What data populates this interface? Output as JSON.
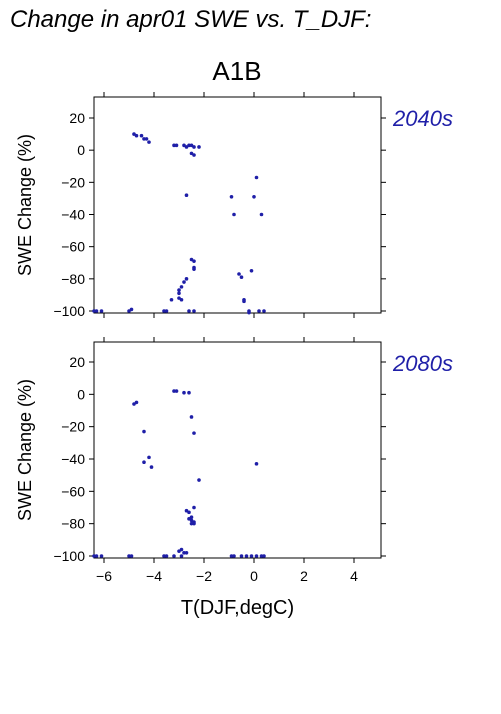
{
  "title": "Change in apr01 SWE vs. T_DJF:",
  "scenario": "A1B",
  "colors": {
    "points": "#1f1fa8",
    "period_label": "#1f1fa8",
    "axis": "#000000"
  },
  "chart_data": [
    {
      "type": "scatter",
      "period_label": "2040s",
      "ylabel": "SWE Change (%)",
      "xlabel": "",
      "xlim": [
        -6.5,
        5
      ],
      "ylim": [
        -100,
        30
      ],
      "x_ticks": [
        -6,
        -4,
        -2,
        0,
        2,
        4
      ],
      "x_tick_labels": [
        "",
        "",
        "",
        "",
        "",
        ""
      ],
      "y_ticks": [
        20,
        0,
        -20,
        -40,
        -60,
        -80,
        -100
      ],
      "y_tick_labels": [
        "20",
        "0",
        "−20",
        "−40",
        "−60",
        "−80",
        "−100"
      ],
      "grid": false,
      "points": [
        [
          -4.8,
          10
        ],
        [
          -4.7,
          9
        ],
        [
          -4.5,
          9
        ],
        [
          -4.4,
          7
        ],
        [
          -4.3,
          7
        ],
        [
          -4.2,
          5
        ],
        [
          -3.2,
          3
        ],
        [
          -3.1,
          3
        ],
        [
          -2.8,
          3
        ],
        [
          -2.7,
          2
        ],
        [
          -2.6,
          3
        ],
        [
          -2.5,
          3
        ],
        [
          -2.4,
          2
        ],
        [
          -2.2,
          2
        ],
        [
          -2.5,
          -2
        ],
        [
          -2.4,
          -3
        ],
        [
          -2.7,
          -28
        ],
        [
          -0.9,
          -29
        ],
        [
          -0.8,
          -40
        ],
        [
          0.1,
          -17
        ],
        [
          0.0,
          -29
        ],
        [
          0.3,
          -40
        ],
        [
          -2.5,
          -68
        ],
        [
          -2.4,
          -69
        ],
        [
          -2.4,
          -73
        ],
        [
          -2.4,
          -74
        ],
        [
          -2.7,
          -80
        ],
        [
          -2.8,
          -82
        ],
        [
          -2.9,
          -85
        ],
        [
          -3.0,
          -87
        ],
        [
          -3.0,
          -89
        ],
        [
          -3.0,
          -92
        ],
        [
          -2.9,
          -93
        ],
        [
          -3.3,
          -93
        ],
        [
          -0.6,
          -77
        ],
        [
          -0.5,
          -79
        ],
        [
          -0.1,
          -75
        ],
        [
          -0.4,
          -93
        ],
        [
          -0.4,
          -94
        ],
        [
          -6.4,
          -100
        ],
        [
          -6.3,
          -100
        ],
        [
          -6.1,
          -100
        ],
        [
          -5.0,
          -100
        ],
        [
          -4.9,
          -99
        ],
        [
          -3.6,
          -100
        ],
        [
          -3.5,
          -100
        ],
        [
          -2.6,
          -100
        ],
        [
          -2.4,
          -100
        ],
        [
          -0.2,
          -100
        ],
        [
          -0.2,
          -101
        ],
        [
          0.2,
          -100
        ],
        [
          0.4,
          -100
        ]
      ]
    },
    {
      "type": "scatter",
      "period_label": "2080s",
      "ylabel": "SWE Change (%)",
      "xlabel": "T(DJF,degC)",
      "xlim": [
        -6.5,
        5
      ],
      "ylim": [
        -100,
        30
      ],
      "x_ticks": [
        -6,
        -4,
        -2,
        0,
        2,
        4
      ],
      "x_tick_labels": [
        "−6",
        "−4",
        "−2",
        "0",
        "2",
        "4"
      ],
      "y_ticks": [
        20,
        0,
        -20,
        -40,
        -60,
        -80,
        -100
      ],
      "y_tick_labels": [
        "20",
        "0",
        "−20",
        "−40",
        "−60",
        "−80",
        "−100"
      ],
      "grid": false,
      "points": [
        [
          -3.2,
          2
        ],
        [
          -3.1,
          2
        ],
        [
          -2.8,
          1
        ],
        [
          -2.6,
          1
        ],
        [
          -4.8,
          -6
        ],
        [
          -4.7,
          -5
        ],
        [
          -4.4,
          -23
        ],
        [
          -2.5,
          -14
        ],
        [
          -2.4,
          -24
        ],
        [
          -4.2,
          -39
        ],
        [
          -4.4,
          -42
        ],
        [
          -4.1,
          -45
        ],
        [
          -2.2,
          -53
        ],
        [
          0.1,
          -43
        ],
        [
          -2.7,
          -72
        ],
        [
          -2.6,
          -73
        ],
        [
          -2.4,
          -70
        ],
        [
          -2.5,
          -76
        ],
        [
          -2.6,
          -77
        ],
        [
          -2.5,
          -78
        ],
        [
          -2.4,
          -79
        ],
        [
          -2.4,
          -80
        ],
        [
          -2.5,
          -80
        ],
        [
          -3.0,
          -97
        ],
        [
          -2.9,
          -96
        ],
        [
          -2.8,
          -98
        ],
        [
          -2.7,
          -98
        ],
        [
          -6.4,
          -100
        ],
        [
          -6.3,
          -100
        ],
        [
          -6.1,
          -100
        ],
        [
          -5.0,
          -100
        ],
        [
          -4.9,
          -100
        ],
        [
          -3.6,
          -100
        ],
        [
          -3.5,
          -100
        ],
        [
          -3.2,
          -100
        ],
        [
          -2.9,
          -100
        ],
        [
          -0.9,
          -100
        ],
        [
          -0.8,
          -100
        ],
        [
          -0.5,
          -100
        ],
        [
          -0.3,
          -100
        ],
        [
          -0.1,
          -100
        ],
        [
          0.1,
          -100
        ],
        [
          0.3,
          -100
        ],
        [
          0.4,
          -100
        ]
      ]
    }
  ]
}
